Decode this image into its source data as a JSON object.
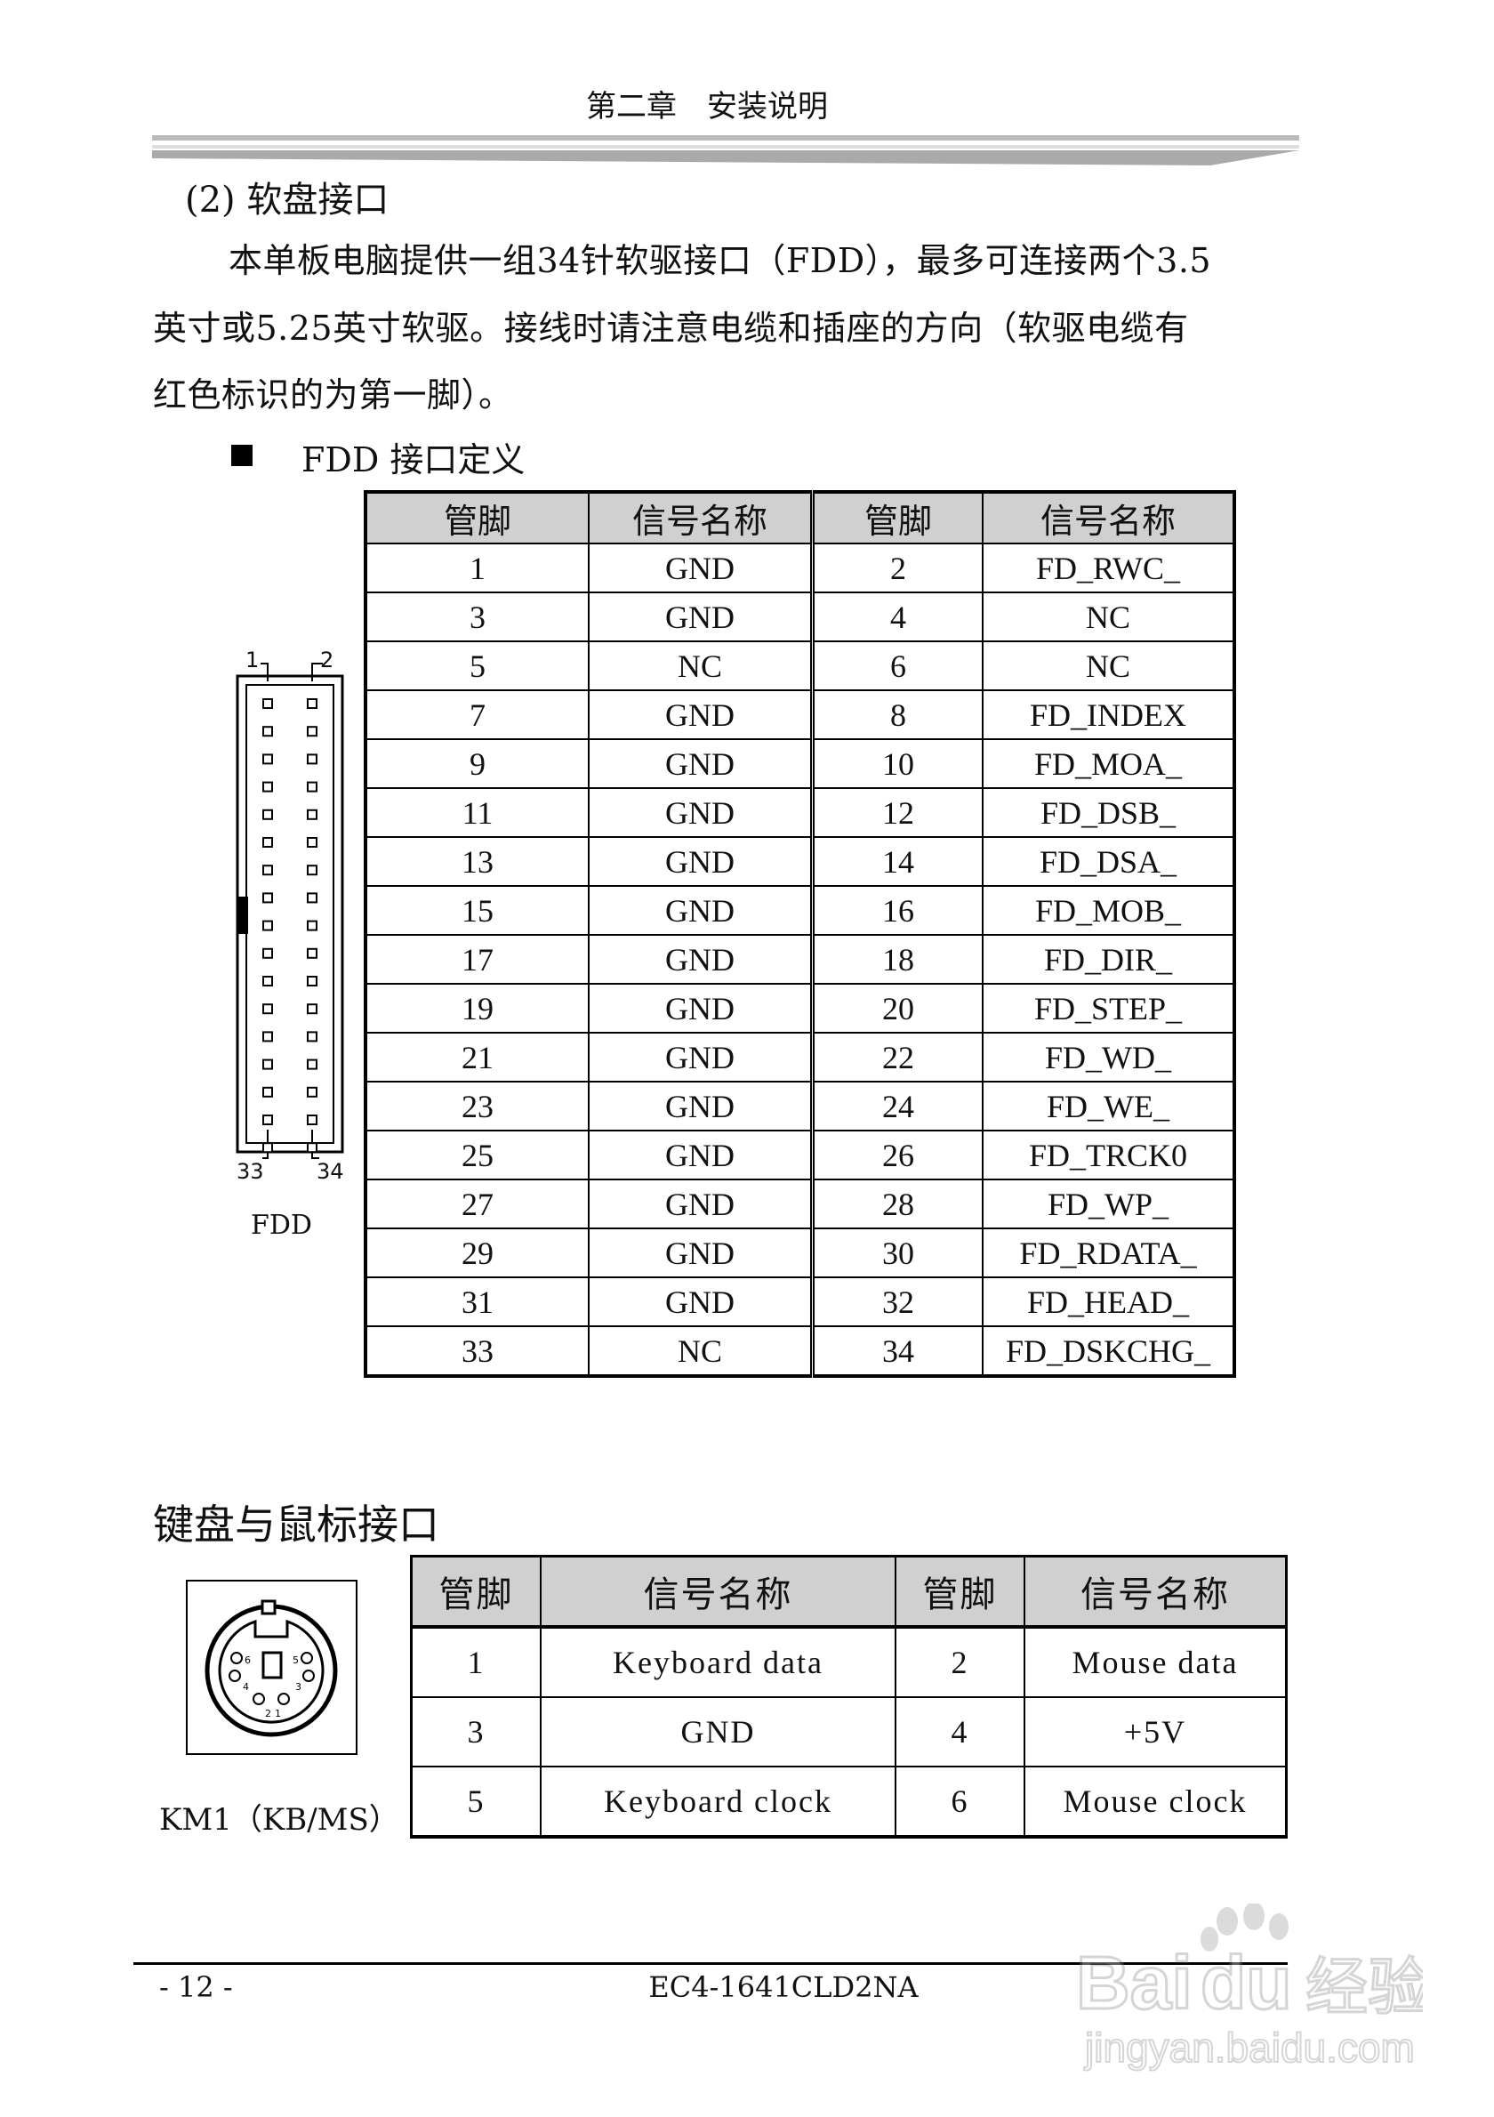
{
  "header": {
    "title": "第二章　安装说明"
  },
  "section": {
    "title": "(2) 软盘接口",
    "paragraph": [
      "本单板电脑提供一组34针软驱接口（FDD），最多可连接两个3.5",
      "英寸或5.25英寸软驱。接线时请注意电缆和插座的方向（软驱电缆有",
      "红色标识的为第一脚）。"
    ]
  },
  "fdd": {
    "title": "FDD 接口定义",
    "headers": [
      "管脚",
      "信号名称",
      "管脚",
      "信号名称"
    ],
    "rows": [
      [
        "1",
        "GND",
        "2",
        "FD_RWC_"
      ],
      [
        "3",
        "GND",
        "4",
        "NC"
      ],
      [
        "5",
        "NC",
        "6",
        "NC"
      ],
      [
        "7",
        "GND",
        "8",
        "FD_INDEX"
      ],
      [
        "9",
        "GND",
        "10",
        "FD_MOA_"
      ],
      [
        "11",
        "GND",
        "12",
        "FD_DSB_"
      ],
      [
        "13",
        "GND",
        "14",
        "FD_DSA_"
      ],
      [
        "15",
        "GND",
        "16",
        "FD_MOB_"
      ],
      [
        "17",
        "GND",
        "18",
        "FD_DIR_"
      ],
      [
        "19",
        "GND",
        "20",
        "FD_STEP_"
      ],
      [
        "21",
        "GND",
        "22",
        "FD_WD_"
      ],
      [
        "23",
        "GND",
        "24",
        "FD_WE_"
      ],
      [
        "25",
        "GND",
        "26",
        "FD_TRCK0"
      ],
      [
        "27",
        "GND",
        "28",
        "FD_WP_"
      ],
      [
        "29",
        "GND",
        "30",
        "FD_RDATA_"
      ],
      [
        "31",
        "GND",
        "32",
        "FD_HEAD_"
      ],
      [
        "33",
        "NC",
        "34",
        "FD_DSKCHG_"
      ]
    ],
    "diagram": {
      "pin_top_left": "1",
      "pin_top_right": "2",
      "pin_bottom_left": "33",
      "pin_bottom_right": "34",
      "label": "FDD"
    }
  },
  "kbms": {
    "title": "键盘与鼠标接口",
    "headers": [
      "管脚",
      "信号名称",
      "管脚",
      "信号名称"
    ],
    "rows": [
      [
        "1",
        "Keyboard data",
        "2",
        "Mouse data"
      ],
      [
        "3",
        "GND",
        "4",
        "+5V"
      ],
      [
        "5",
        "Keyboard clock",
        "6",
        "Mouse clock"
      ]
    ],
    "connector_label": "KM1（KB/MS）",
    "pin_numbers": [
      "6",
      "5",
      "4",
      "3",
      "2",
      "1"
    ]
  },
  "footer": {
    "page": "- 12 -",
    "model": "EC4-1641CLD2NA"
  },
  "watermark": {
    "text": "Baidu经验",
    "url_text": "jingyan.baidu.com"
  }
}
